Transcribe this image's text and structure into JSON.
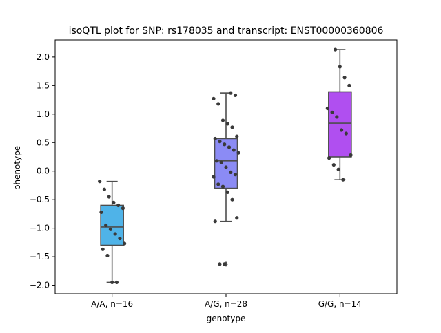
{
  "chart_data": {
    "type": "box",
    "title": "isoQTL plot for SNP: rs178035 and transcript: ENST00000360806",
    "xlabel": "genotype",
    "ylabel": "phenotype",
    "ylim": [
      -2.15,
      2.3
    ],
    "yticks": [
      -2.0,
      -1.5,
      -1.0,
      -0.5,
      0.0,
      0.5,
      1.0,
      1.5,
      2.0
    ],
    "ytick_labels": [
      "−2.0",
      "−1.5",
      "−1.0",
      "−0.5",
      "0.0",
      "0.5",
      "1.0",
      "1.5",
      "2.0"
    ],
    "grid": false,
    "categories": [
      "A/A, n=16",
      "A/G, n=28",
      "G/G, n=14"
    ],
    "colors": {
      "A/A, n=16": "#4fb3e8",
      "A/G, n=28": "#8b8bf5",
      "G/G, n=14": "#b04ff0",
      "box_edge": "#4d4d4d",
      "points": "#3a3a3a"
    },
    "boxes": [
      {
        "category": "A/A, n=16",
        "whisker_low": -1.95,
        "q1": -1.3,
        "median": -0.98,
        "q3": -0.6,
        "whisker_high": -0.18,
        "outliers": []
      },
      {
        "category": "A/G, n=28",
        "whisker_low": -0.88,
        "q1": -0.3,
        "median": 0.18,
        "q3": 0.57,
        "whisker_high": 1.37,
        "outliers": [
          -1.63
        ]
      },
      {
        "category": "G/G, n=14",
        "whisker_low": -0.15,
        "q1": 0.25,
        "median": 0.84,
        "q3": 1.39,
        "whisker_high": 2.13,
        "outliers": []
      }
    ],
    "points": [
      [
        -0.18,
        -0.32,
        -0.45,
        -0.55,
        -0.6,
        -0.65,
        -0.72,
        -0.95,
        -1.02,
        -1.1,
        -1.18,
        -1.27,
        -1.37,
        -1.48,
        -1.95,
        -1.95
      ],
      [
        1.37,
        1.33,
        1.27,
        1.18,
        0.89,
        0.83,
        0.77,
        0.61,
        0.57,
        0.52,
        0.47,
        0.42,
        0.37,
        0.32,
        0.18,
        0.15,
        0.07,
        -0.02,
        -0.06,
        -0.1,
        -0.23,
        -0.27,
        -0.37,
        -0.5,
        -0.82,
        -0.88,
        -1.63,
        -1.63
      ],
      [
        2.13,
        1.83,
        1.64,
        1.5,
        1.1,
        1.03,
        0.95,
        0.72,
        0.66,
        0.28,
        0.23,
        0.11,
        0.03,
        -0.15
      ]
    ]
  }
}
